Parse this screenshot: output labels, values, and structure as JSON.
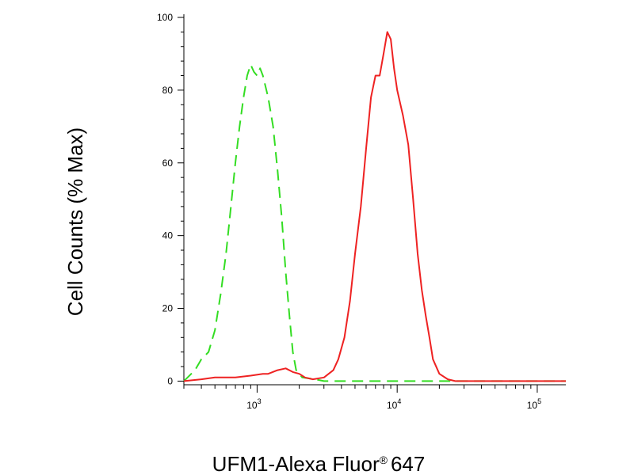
{
  "chart_data": {
    "type": "line",
    "title": "",
    "xlabel": "UFM1-Alexa Fluor",
    "xlabel_mark": "®",
    "xlabel_suffix": "647",
    "ylabel": "Cell Counts (% Max)",
    "x_scale": "log",
    "xlim": [
      300,
      160000
    ],
    "ylim": [
      -1,
      100
    ],
    "grid": false,
    "legend": "none",
    "y_ticks": [
      {
        "value": 0,
        "label": "0"
      },
      {
        "value": 20,
        "label": "20"
      },
      {
        "value": 40,
        "label": "40"
      },
      {
        "value": 60,
        "label": "60"
      },
      {
        "value": 80,
        "label": "80"
      },
      {
        "value": 100,
        "label": "100"
      }
    ],
    "x_ticks": [
      {
        "value": 1000,
        "base": "10",
        "exp": "3"
      },
      {
        "value": 10000,
        "base": "10",
        "exp": "4"
      },
      {
        "value": 100000,
        "base": "10",
        "exp": "5"
      }
    ],
    "series": [
      {
        "color": "#33dd22",
        "dash": "dashed",
        "points": [
          [
            300,
            0
          ],
          [
            360,
            3
          ],
          [
            400,
            6
          ],
          [
            450,
            8
          ],
          [
            500,
            14
          ],
          [
            550,
            24
          ],
          [
            600,
            35
          ],
          [
            650,
            48
          ],
          [
            700,
            60
          ],
          [
            750,
            70
          ],
          [
            800,
            78
          ],
          [
            850,
            84
          ],
          [
            900,
            87
          ],
          [
            950,
            85
          ],
          [
            1000,
            84
          ],
          [
            1050,
            86
          ],
          [
            1100,
            84
          ],
          [
            1200,
            78
          ],
          [
            1300,
            70
          ],
          [
            1400,
            58
          ],
          [
            1500,
            45
          ],
          [
            1600,
            30
          ],
          [
            1700,
            18
          ],
          [
            1800,
            8
          ],
          [
            1900,
            3
          ],
          [
            2100,
            1
          ],
          [
            2600,
            0.5
          ],
          [
            3000,
            0
          ],
          [
            100000,
            0
          ],
          [
            160000,
            0
          ]
        ]
      },
      {
        "color": "#ee2222",
        "dash": "solid",
        "points": [
          [
            300,
            0
          ],
          [
            400,
            0.5
          ],
          [
            500,
            1
          ],
          [
            700,
            1
          ],
          [
            900,
            1.5
          ],
          [
            1100,
            2
          ],
          [
            1200,
            2
          ],
          [
            1400,
            3
          ],
          [
            1600,
            3.5
          ],
          [
            1800,
            2.5
          ],
          [
            2000,
            2
          ],
          [
            2200,
            1
          ],
          [
            2500,
            0.5
          ],
          [
            3000,
            1
          ],
          [
            3500,
            3
          ],
          [
            3800,
            6
          ],
          [
            4200,
            12
          ],
          [
            4600,
            22
          ],
          [
            5000,
            35
          ],
          [
            5500,
            48
          ],
          [
            6000,
            64
          ],
          [
            6500,
            78
          ],
          [
            7000,
            84
          ],
          [
            7500,
            84
          ],
          [
            8000,
            90
          ],
          [
            8500,
            96
          ],
          [
            9000,
            94
          ],
          [
            9500,
            86
          ],
          [
            10000,
            80
          ],
          [
            11000,
            73
          ],
          [
            12000,
            65
          ],
          [
            13000,
            50
          ],
          [
            14000,
            35
          ],
          [
            15000,
            25
          ],
          [
            16000,
            18
          ],
          [
            17000,
            12
          ],
          [
            18000,
            6
          ],
          [
            20000,
            2
          ],
          [
            23000,
            0.5
          ],
          [
            26000,
            0
          ],
          [
            160000,
            0
          ]
        ]
      }
    ]
  }
}
